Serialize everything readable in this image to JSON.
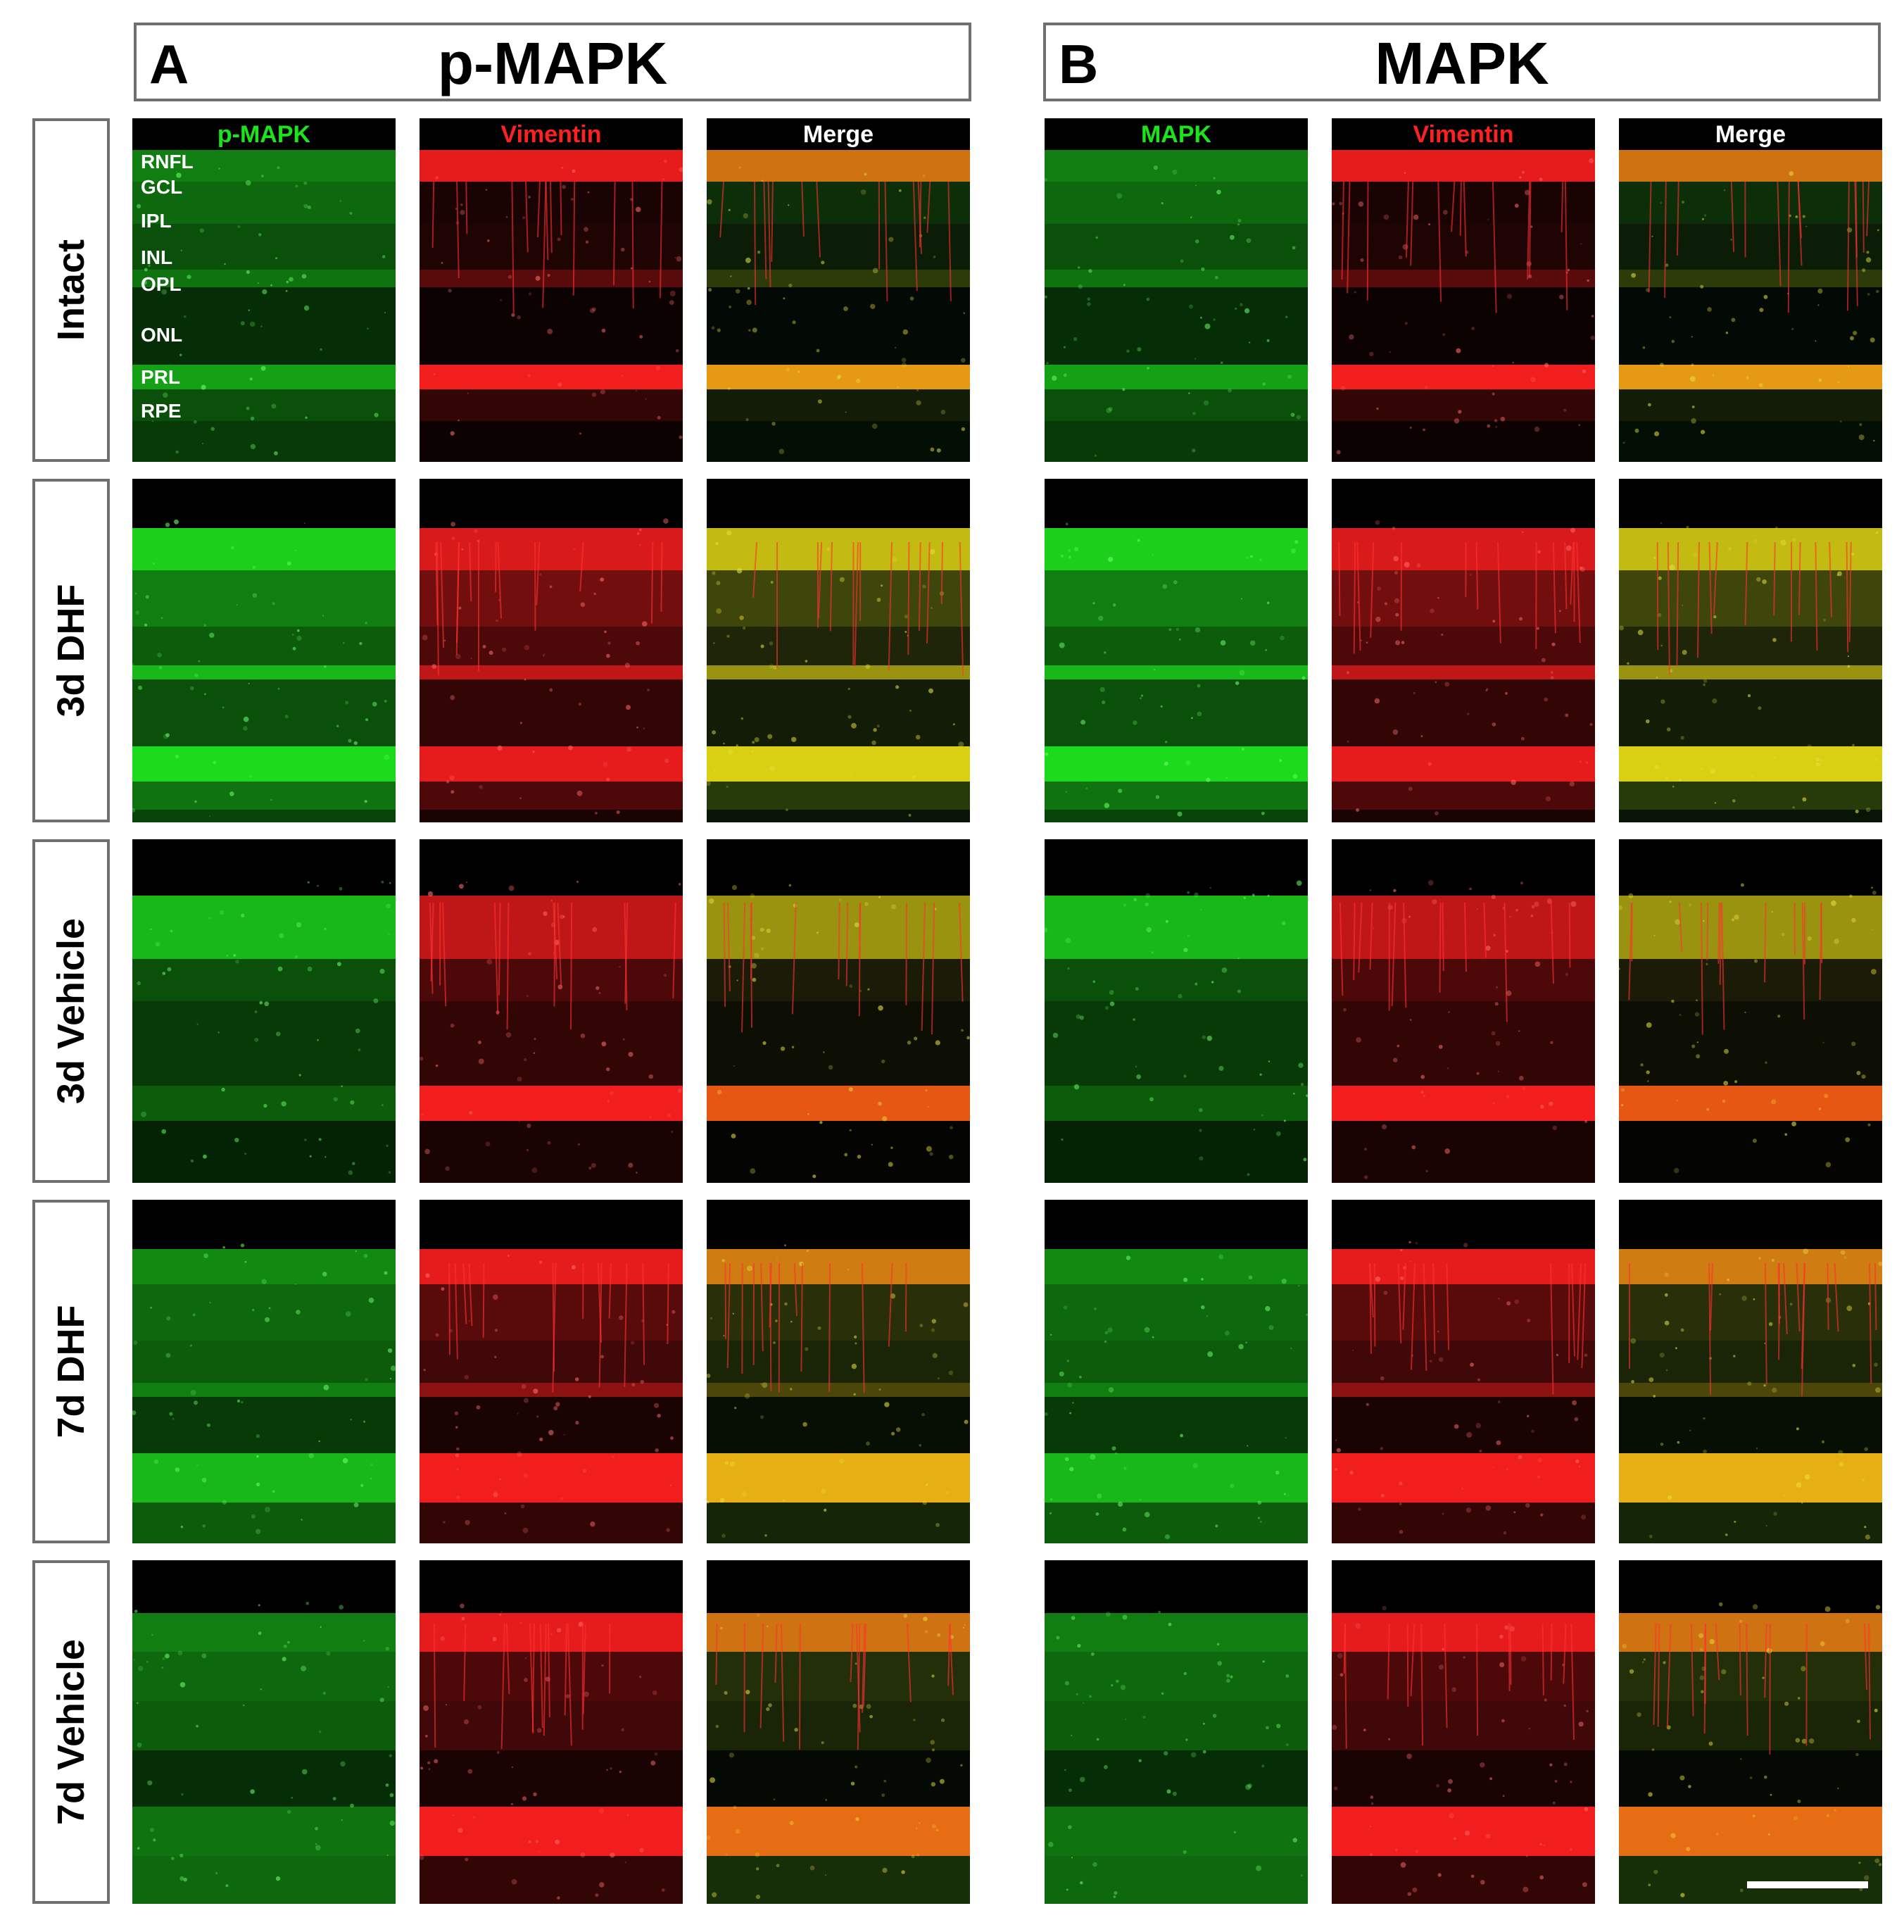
{
  "panels": [
    {
      "letter": "A",
      "title": "p-MAPK"
    },
    {
      "letter": "B",
      "title": "MAPK"
    }
  ],
  "rows": [
    "Intact",
    "3d DHF",
    "3d Vehicle",
    "7d DHF",
    "7d Vehicle"
  ],
  "columns": {
    "A": [
      {
        "label": "p-MAPK",
        "channel": "green",
        "color": "#19e619"
      },
      {
        "label": "Vimentin",
        "channel": "red",
        "color": "#ff2020"
      },
      {
        "label": "Merge",
        "channel": "merge",
        "color": "#ffffff"
      }
    ],
    "B": [
      {
        "label": "MAPK",
        "channel": "green",
        "color": "#19e619"
      },
      {
        "label": "Vimentin",
        "channel": "red",
        "color": "#ff2020"
      },
      {
        "label": "Merge",
        "channel": "merge",
        "color": "#ffffff"
      }
    ]
  },
  "layer_labels": [
    "RNFL",
    "GCL",
    "IPL",
    "INL",
    "OPL",
    "ONL",
    "PRL",
    "RPE"
  ]
}
